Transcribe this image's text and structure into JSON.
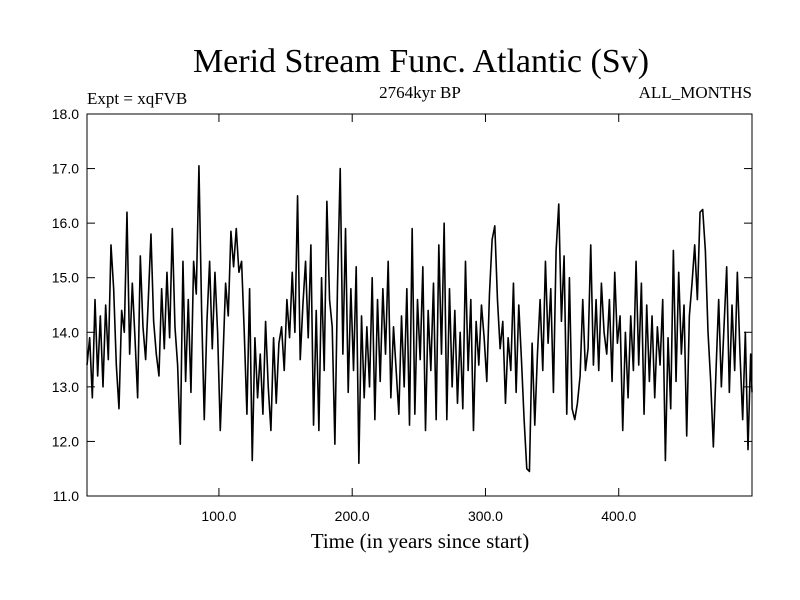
{
  "chart_data": {
    "type": "line",
    "title": "Merid Stream Func. Atlantic (Sv)",
    "header_left": "Expt = xqFVB",
    "header_center": "2764kyr BP",
    "header_right": "ALL_MONTHS",
    "xlabel": "Time (in years since start)",
    "ylabel": "",
    "xlim": [
      1,
      500
    ],
    "ylim": [
      11.0,
      18.0
    ],
    "x_ticks": [
      100,
      200,
      300,
      400
    ],
    "x_tick_labels": [
      "100.0",
      "200.0",
      "300.0",
      "400.0"
    ],
    "y_ticks": [
      11,
      12,
      13,
      14,
      15,
      16,
      17,
      18
    ],
    "y_tick_labels": [
      "11.0",
      "12.0",
      "13.0",
      "14.0",
      "15.0",
      "16.0",
      "17.0",
      "18.0"
    ],
    "grid": false,
    "line_color": "#000000",
    "series": [
      {
        "name": "Merid Stream Func. Atlantic",
        "points": [
          [
            1,
            13.4
          ],
          [
            3,
            13.9
          ],
          [
            5,
            12.8
          ],
          [
            7,
            14.6
          ],
          [
            9,
            13.2
          ],
          [
            11,
            14.3
          ],
          [
            13,
            13.0
          ],
          [
            15,
            14.5
          ],
          [
            17,
            13.5
          ],
          [
            19,
            15.6
          ],
          [
            21,
            14.8
          ],
          [
            23,
            13.4
          ],
          [
            25,
            12.6
          ],
          [
            27,
            14.4
          ],
          [
            29,
            14.0
          ],
          [
            31,
            16.2
          ],
          [
            33,
            13.6
          ],
          [
            35,
            14.9
          ],
          [
            37,
            13.9
          ],
          [
            39,
            12.8
          ],
          [
            41,
            15.4
          ],
          [
            43,
            14.1
          ],
          [
            45,
            13.5
          ],
          [
            47,
            14.6
          ],
          [
            49,
            15.8
          ],
          [
            51,
            14.2
          ],
          [
            53,
            13.6
          ],
          [
            55,
            13.2
          ],
          [
            57,
            14.8
          ],
          [
            59,
            13.7
          ],
          [
            61,
            15.1
          ],
          [
            63,
            13.9
          ],
          [
            65,
            15.9
          ],
          [
            67,
            14.1
          ],
          [
            69,
            13.4
          ],
          [
            71,
            11.95
          ],
          [
            73,
            15.3
          ],
          [
            75,
            13.1
          ],
          [
            77,
            14.6
          ],
          [
            79,
            12.9
          ],
          [
            81,
            15.3
          ],
          [
            83,
            14.7
          ],
          [
            85,
            17.05
          ],
          [
            87,
            14.4
          ],
          [
            89,
            12.4
          ],
          [
            91,
            14.2
          ],
          [
            93,
            15.3
          ],
          [
            95,
            13.7
          ],
          [
            97,
            15.1
          ],
          [
            99,
            14.0
          ],
          [
            101,
            12.2
          ],
          [
            103,
            13.5
          ],
          [
            105,
            14.9
          ],
          [
            107,
            14.3
          ],
          [
            109,
            15.85
          ],
          [
            111,
            15.2
          ],
          [
            113,
            15.9
          ],
          [
            115,
            15.1
          ],
          [
            117,
            15.3
          ],
          [
            119,
            14.0
          ],
          [
            121,
            12.5
          ],
          [
            123,
            14.8
          ],
          [
            125,
            11.65
          ],
          [
            127,
            13.9
          ],
          [
            129,
            12.8
          ],
          [
            131,
            13.6
          ],
          [
            133,
            12.5
          ],
          [
            135,
            14.2
          ],
          [
            137,
            13.0
          ],
          [
            139,
            12.2
          ],
          [
            141,
            13.9
          ],
          [
            143,
            12.7
          ],
          [
            145,
            13.8
          ],
          [
            147,
            14.1
          ],
          [
            149,
            13.3
          ],
          [
            151,
            14.6
          ],
          [
            153,
            13.9
          ],
          [
            155,
            15.1
          ],
          [
            157,
            14.0
          ],
          [
            159,
            16.5
          ],
          [
            161,
            13.5
          ],
          [
            163,
            14.5
          ],
          [
            165,
            15.3
          ],
          [
            167,
            13.9
          ],
          [
            169,
            15.6
          ],
          [
            171,
            12.3
          ],
          [
            173,
            14.4
          ],
          [
            175,
            12.2
          ],
          [
            177,
            15.0
          ],
          [
            179,
            13.3
          ],
          [
            181,
            16.4
          ],
          [
            183,
            14.6
          ],
          [
            185,
            14.1
          ],
          [
            187,
            11.95
          ],
          [
            189,
            14.9
          ],
          [
            191,
            17.0
          ],
          [
            193,
            13.6
          ],
          [
            195,
            15.9
          ],
          [
            197,
            12.9
          ],
          [
            199,
            14.8
          ],
          [
            201,
            13.3
          ],
          [
            203,
            15.2
          ],
          [
            205,
            11.6
          ],
          [
            207,
            14.3
          ],
          [
            209,
            12.8
          ],
          [
            211,
            14.1
          ],
          [
            213,
            13.0
          ],
          [
            215,
            15.0
          ],
          [
            217,
            12.4
          ],
          [
            219,
            14.6
          ],
          [
            221,
            13.1
          ],
          [
            223,
            14.8
          ],
          [
            225,
            13.6
          ],
          [
            227,
            15.3
          ],
          [
            229,
            12.8
          ],
          [
            231,
            14.1
          ],
          [
            233,
            13.3
          ],
          [
            235,
            12.5
          ],
          [
            237,
            14.3
          ],
          [
            239,
            13.0
          ],
          [
            241,
            14.8
          ],
          [
            243,
            12.3
          ],
          [
            245,
            15.9
          ],
          [
            247,
            12.5
          ],
          [
            249,
            14.6
          ],
          [
            251,
            13.5
          ],
          [
            253,
            15.2
          ],
          [
            255,
            12.2
          ],
          [
            257,
            14.4
          ],
          [
            259,
            13.3
          ],
          [
            261,
            14.9
          ],
          [
            263,
            12.4
          ],
          [
            265,
            15.6
          ],
          [
            267,
            13.6
          ],
          [
            269,
            16.0
          ],
          [
            271,
            12.4
          ],
          [
            273,
            14.8
          ],
          [
            275,
            13.0
          ],
          [
            277,
            14.4
          ],
          [
            279,
            12.7
          ],
          [
            281,
            14.0
          ],
          [
            283,
            12.6
          ],
          [
            285,
            15.3
          ],
          [
            287,
            13.3
          ],
          [
            289,
            14.6
          ],
          [
            291,
            12.2
          ],
          [
            293,
            14.2
          ],
          [
            295,
            13.4
          ],
          [
            297,
            14.5
          ],
          [
            299,
            13.9
          ],
          [
            301,
            13.1
          ],
          [
            303,
            14.7
          ],
          [
            305,
            15.7
          ],
          [
            307,
            15.95
          ],
          [
            309,
            14.6
          ],
          [
            311,
            13.7
          ],
          [
            313,
            14.2
          ],
          [
            315,
            12.7
          ],
          [
            317,
            13.9
          ],
          [
            319,
            13.3
          ],
          [
            321,
            14.9
          ],
          [
            323,
            12.9
          ],
          [
            325,
            14.5
          ],
          [
            327,
            13.5
          ],
          [
            329,
            12.4
          ],
          [
            331,
            11.5
          ],
          [
            333,
            11.45
          ],
          [
            335,
            13.8
          ],
          [
            337,
            12.3
          ],
          [
            339,
            13.6
          ],
          [
            341,
            14.6
          ],
          [
            343,
            13.3
          ],
          [
            345,
            15.3
          ],
          [
            347,
            13.8
          ],
          [
            349,
            14.8
          ],
          [
            351,
            12.9
          ],
          [
            353,
            15.5
          ],
          [
            355,
            16.35
          ],
          [
            357,
            14.2
          ],
          [
            359,
            15.4
          ],
          [
            361,
            12.5
          ],
          [
            363,
            15.0
          ],
          [
            365,
            12.6
          ],
          [
            367,
            12.4
          ],
          [
            369,
            12.7
          ],
          [
            371,
            13.2
          ],
          [
            373,
            14.6
          ],
          [
            375,
            13.3
          ],
          [
            377,
            13.7
          ],
          [
            379,
            15.6
          ],
          [
            381,
            13.4
          ],
          [
            383,
            14.6
          ],
          [
            385,
            13.3
          ],
          [
            387,
            14.9
          ],
          [
            389,
            14.0
          ],
          [
            391,
            13.6
          ],
          [
            393,
            14.6
          ],
          [
            395,
            13.1
          ],
          [
            397,
            15.1
          ],
          [
            399,
            13.8
          ],
          [
            401,
            14.3
          ],
          [
            403,
            12.2
          ],
          [
            405,
            14.0
          ],
          [
            407,
            12.8
          ],
          [
            409,
            14.3
          ],
          [
            411,
            13.3
          ],
          [
            413,
            15.3
          ],
          [
            415,
            13.4
          ],
          [
            417,
            14.9
          ],
          [
            419,
            12.5
          ],
          [
            421,
            14.5
          ],
          [
            423,
            13.1
          ],
          [
            425,
            14.3
          ],
          [
            427,
            12.8
          ],
          [
            429,
            14.1
          ],
          [
            431,
            13.4
          ],
          [
            433,
            14.6
          ],
          [
            435,
            11.65
          ],
          [
            437,
            13.9
          ],
          [
            439,
            12.6
          ],
          [
            441,
            15.5
          ],
          [
            443,
            13.1
          ],
          [
            445,
            15.1
          ],
          [
            447,
            13.6
          ],
          [
            449,
            14.5
          ],
          [
            451,
            12.1
          ],
          [
            453,
            14.3
          ],
          [
            455,
            14.9
          ],
          [
            457,
            15.6
          ],
          [
            459,
            14.6
          ],
          [
            461,
            16.2
          ],
          [
            463,
            16.25
          ],
          [
            465,
            15.5
          ],
          [
            467,
            14.0
          ],
          [
            469,
            13.1
          ],
          [
            471,
            11.9
          ],
          [
            473,
            13.3
          ],
          [
            475,
            14.6
          ],
          [
            477,
            13.0
          ],
          [
            479,
            14.1
          ],
          [
            481,
            15.2
          ],
          [
            483,
            12.9
          ],
          [
            485,
            14.5
          ],
          [
            487,
            13.3
          ],
          [
            489,
            15.1
          ],
          [
            491,
            13.6
          ],
          [
            493,
            12.4
          ],
          [
            495,
            14.0
          ],
          [
            497,
            11.85
          ],
          [
            499,
            13.6
          ],
          [
            500,
            12.9
          ]
        ]
      }
    ]
  }
}
